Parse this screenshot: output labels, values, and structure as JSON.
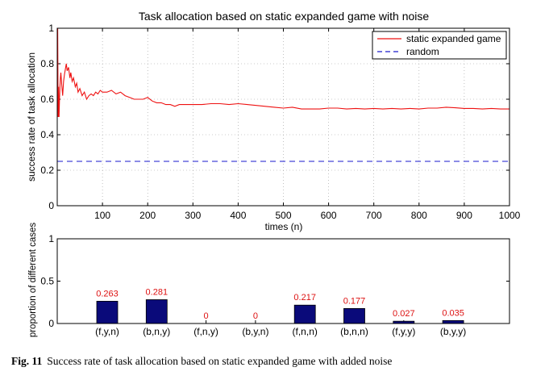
{
  "caption": {
    "label": "Fig. 11",
    "text": "Success rate of task allocation based on static expanded game with added noise"
  },
  "chart_data": [
    {
      "type": "line",
      "title": "Task allocation based on static expanded game with noise",
      "xlabel": "times (n)",
      "ylabel": "success rate of task allocation",
      "xlim": [
        0,
        1000
      ],
      "ylim": [
        0,
        1
      ],
      "xticks": [
        100,
        200,
        300,
        400,
        500,
        600,
        700,
        800,
        900,
        1000
      ],
      "yticks": [
        0,
        0.2,
        0.4,
        0.6,
        0.8,
        1
      ],
      "grid": true,
      "legend": "top-right",
      "series": [
        {
          "name": "static expanded game",
          "color": "#ee1111",
          "style": "solid",
          "x": [
            1,
            2,
            3,
            4,
            5,
            6,
            7,
            8,
            10,
            12,
            14,
            16,
            18,
            20,
            22,
            25,
            28,
            30,
            33,
            36,
            40,
            43,
            46,
            50,
            55,
            60,
            65,
            70,
            75,
            80,
            85,
            90,
            95,
            100,
            110,
            120,
            130,
            140,
            150,
            160,
            170,
            180,
            190,
            200,
            210,
            220,
            230,
            240,
            250,
            260,
            270,
            280,
            290,
            300,
            320,
            340,
            360,
            380,
            400,
            420,
            440,
            460,
            480,
            500,
            520,
            540,
            560,
            580,
            600,
            620,
            640,
            660,
            680,
            700,
            720,
            740,
            760,
            780,
            800,
            820,
            840,
            860,
            880,
            900,
            920,
            940,
            960,
            980,
            1000
          ],
          "y": [
            1.0,
            0.5,
            0.67,
            0.5,
            0.6,
            0.67,
            0.72,
            0.75,
            0.68,
            0.62,
            0.7,
            0.74,
            0.77,
            0.8,
            0.76,
            0.78,
            0.72,
            0.75,
            0.7,
            0.72,
            0.67,
            0.69,
            0.64,
            0.66,
            0.62,
            0.64,
            0.6,
            0.62,
            0.63,
            0.62,
            0.64,
            0.63,
            0.65,
            0.64,
            0.64,
            0.65,
            0.63,
            0.64,
            0.62,
            0.61,
            0.6,
            0.6,
            0.6,
            0.61,
            0.59,
            0.58,
            0.58,
            0.57,
            0.57,
            0.56,
            0.57,
            0.57,
            0.57,
            0.57,
            0.57,
            0.575,
            0.575,
            0.57,
            0.575,
            0.57,
            0.565,
            0.56,
            0.555,
            0.55,
            0.555,
            0.545,
            0.545,
            0.545,
            0.55,
            0.55,
            0.545,
            0.548,
            0.545,
            0.548,
            0.545,
            0.548,
            0.545,
            0.548,
            0.545,
            0.55,
            0.55,
            0.555,
            0.552,
            0.548,
            0.548,
            0.545,
            0.548,
            0.545,
            0.545
          ]
        },
        {
          "name": "random",
          "color": "#1a1acc",
          "style": "dashed",
          "x": [
            0,
            1000
          ],
          "y": [
            0.25,
            0.25
          ]
        }
      ]
    },
    {
      "type": "bar",
      "ylabel": "proportion of different cases",
      "ylim": [
        0,
        1
      ],
      "yticks": [
        0,
        0.5,
        1
      ],
      "grid": false,
      "bar_color": "#0a0a7a",
      "label_color": "#dd1111",
      "categories": [
        "(f,y,n)",
        "(b,n,y)",
        "(f,n,y)",
        "(b,y,n)",
        "(f,n,n)",
        "(b,n,n)",
        "(f,y,y)",
        "(b,y,y)"
      ],
      "values": [
        0.263,
        0.281,
        0,
        0,
        0.217,
        0.177,
        0.027,
        0.035
      ],
      "value_labels": [
        "0.263",
        "0.281",
        "0",
        "0",
        "0.217",
        "0.177",
        "0.027",
        "0.035"
      ]
    }
  ]
}
